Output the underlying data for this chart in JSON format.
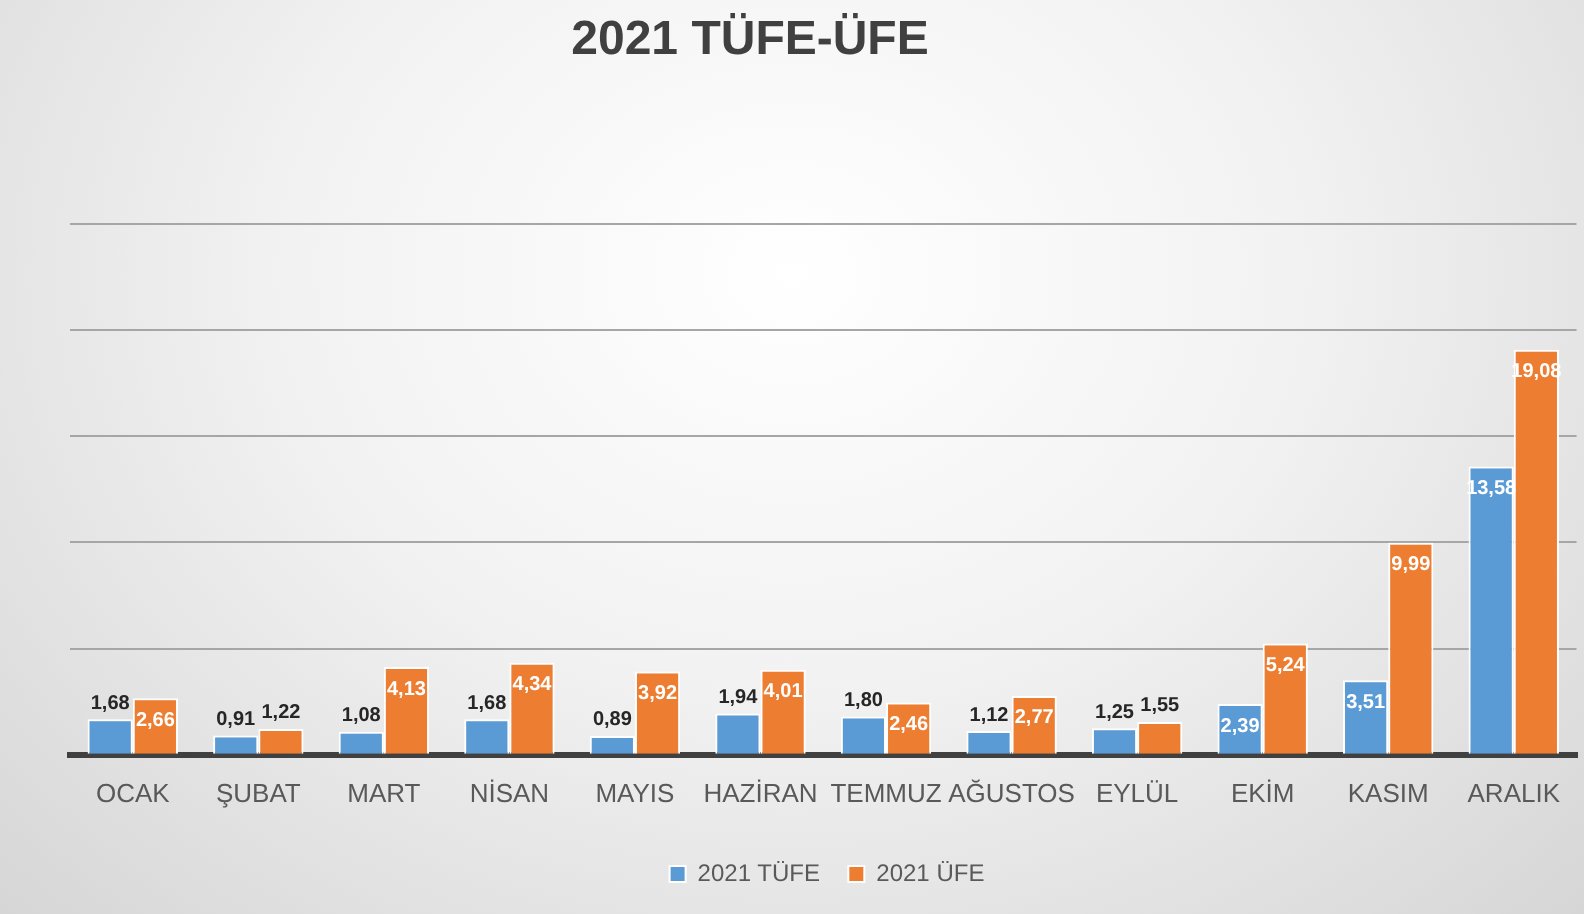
{
  "chart_data": {
    "type": "bar",
    "title": "2021 TÜFE-ÜFE",
    "categories": [
      "OCAK",
      "ŞUBAT",
      "MART",
      "NİSAN",
      "MAYIS",
      "HAZİRAN",
      "TEMMUZ",
      "AĞUSTOS",
      "EYLÜL",
      "EKİM",
      "KASIM",
      "ARALIK"
    ],
    "series": [
      {
        "name": "2021 TÜFE",
        "color": "#5b9bd5",
        "values": [
          1.68,
          0.91,
          1.08,
          1.68,
          0.89,
          1.94,
          1.8,
          1.12,
          1.25,
          2.39,
          3.51,
          13.58
        ],
        "value_labels": [
          "1,68",
          "0,91",
          "1,08",
          "1,68",
          "0,89",
          "1,94",
          "1,80",
          "1,12",
          "1,25",
          "2,39",
          "3,51",
          "13,58"
        ]
      },
      {
        "name": "2021 ÜFE",
        "color": "#ed7d31",
        "values": [
          2.66,
          1.22,
          4.13,
          4.34,
          3.92,
          4.01,
          2.46,
          2.77,
          1.55,
          5.24,
          9.99,
          19.08
        ],
        "value_labels": [
          "2,66",
          "1,22",
          "4,13",
          "4,34",
          "3,92",
          "4,01",
          "2,46",
          "2,77",
          "1,55",
          "5,24",
          "9,99",
          "19,08"
        ]
      }
    ],
    "ylim": [
      0,
      25
    ],
    "tick_labels": "x",
    "grid": "y",
    "legend": "bottom"
  }
}
